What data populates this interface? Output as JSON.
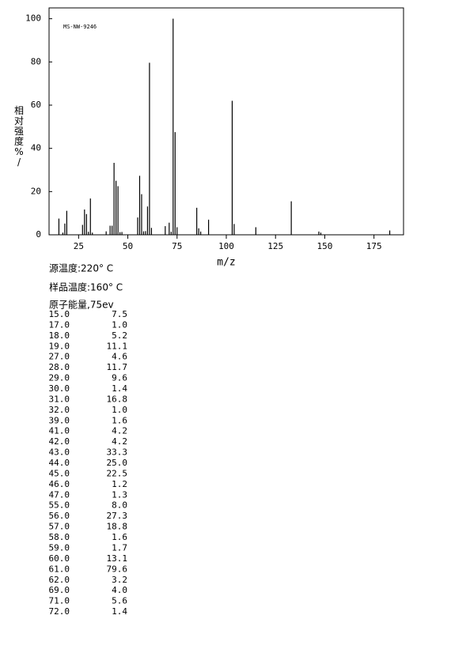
{
  "chart_data": {
    "type": "bar",
    "annotation": "MS-NW-9246",
    "ylabel": "相对强度%/",
    "xlabel": "m/z",
    "x": [
      15,
      17,
      18,
      19,
      27,
      28,
      29,
      30,
      31,
      32,
      39,
      41,
      42,
      43,
      44,
      45,
      46,
      47,
      55,
      56,
      57,
      58,
      59,
      60,
      61,
      62,
      69,
      71,
      72,
      73,
      74,
      75,
      85,
      86,
      87,
      91,
      103,
      104,
      115,
      133,
      147,
      148,
      183
    ],
    "values": [
      7.5,
      1.0,
      5.2,
      11.1,
      4.6,
      11.7,
      9.6,
      1.4,
      16.8,
      1.0,
      1.6,
      4.2,
      4.2,
      33.3,
      25.0,
      22.5,
      1.2,
      1.3,
      8.0,
      27.3,
      18.8,
      1.6,
      1.7,
      13.1,
      79.6,
      3.2,
      4.0,
      5.6,
      1.4,
      100,
      47.5,
      3.5,
      12.5,
      3,
      1.5,
      7,
      62,
      5,
      3.5,
      15.5,
      1.5,
      1,
      2
    ],
    "color": "#000000",
    "xlim": [
      10,
      190
    ],
    "xticks": [
      25,
      50,
      75,
      100,
      125,
      150,
      175
    ],
    "ylim": [
      0,
      105
    ],
    "yticks": [
      0,
      20,
      40,
      60,
      80,
      100
    ]
  },
  "conditions": [
    "源温度:220° C",
    "样品温度:160° C",
    "原子能量,75ev"
  ],
  "table": {
    "rows": [
      [
        "15.0",
        "7.5"
      ],
      [
        "17.0",
        "1.0"
      ],
      [
        "18.0",
        "5.2"
      ],
      [
        "19.0",
        "11.1"
      ],
      [
        "27.0",
        "4.6"
      ],
      [
        "28.0",
        "11.7"
      ],
      [
        "29.0",
        "9.6"
      ],
      [
        "30.0",
        "1.4"
      ],
      [
        "31.0",
        "16.8"
      ],
      [
        "32.0",
        "1.0"
      ],
      [
        "39.0",
        "1.6"
      ],
      [
        "41.0",
        "4.2"
      ],
      [
        "42.0",
        "4.2"
      ],
      [
        "43.0",
        "33.3"
      ],
      [
        "44.0",
        "25.0"
      ],
      [
        "45.0",
        "22.5"
      ],
      [
        "46.0",
        "1.2"
      ],
      [
        "47.0",
        "1.3"
      ],
      [
        "55.0",
        "8.0"
      ],
      [
        "56.0",
        "27.3"
      ],
      [
        "57.0",
        "18.8"
      ],
      [
        "58.0",
        "1.6"
      ],
      [
        "59.0",
        "1.7"
      ],
      [
        "60.0",
        "13.1"
      ],
      [
        "61.0",
        "79.6"
      ],
      [
        "62.0",
        "3.2"
      ],
      [
        "69.0",
        "4.0"
      ],
      [
        "71.0",
        "5.6"
      ],
      [
        "72.0",
        "1.4"
      ]
    ]
  }
}
